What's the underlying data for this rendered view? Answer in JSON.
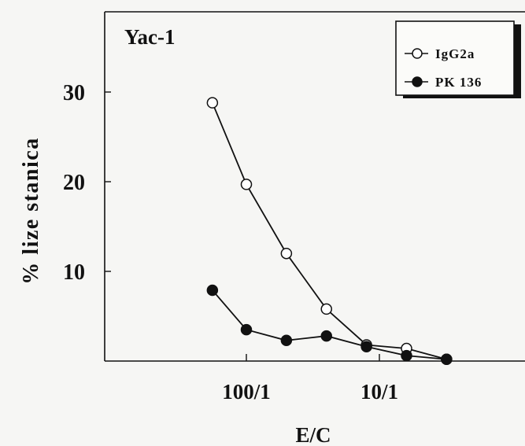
{
  "chart_data": {
    "type": "line",
    "title": "Yac-1",
    "xlabel": "E/C",
    "ylabel": "% lize stanica",
    "x_scale": "log",
    "x_tick_labels": [
      "100/1",
      "10/1"
    ],
    "y_ticks": [
      10,
      20,
      30
    ],
    "ylim": [
      0,
      38
    ],
    "x": [
      180,
      100,
      50,
      25,
      12.5,
      6.25,
      3.125
    ],
    "series": [
      {
        "name": "IgG2a",
        "marker": "open-circle",
        "values": [
          28.8,
          19.7,
          12.0,
          5.8,
          1.8,
          1.4,
          0.2
        ]
      },
      {
        "name": "PK 136",
        "marker": "filled-circle",
        "values": [
          7.9,
          3.5,
          2.3,
          2.8,
          1.6,
          0.6,
          0.2
        ]
      }
    ],
    "legend": "top-right",
    "grid": false
  }
}
